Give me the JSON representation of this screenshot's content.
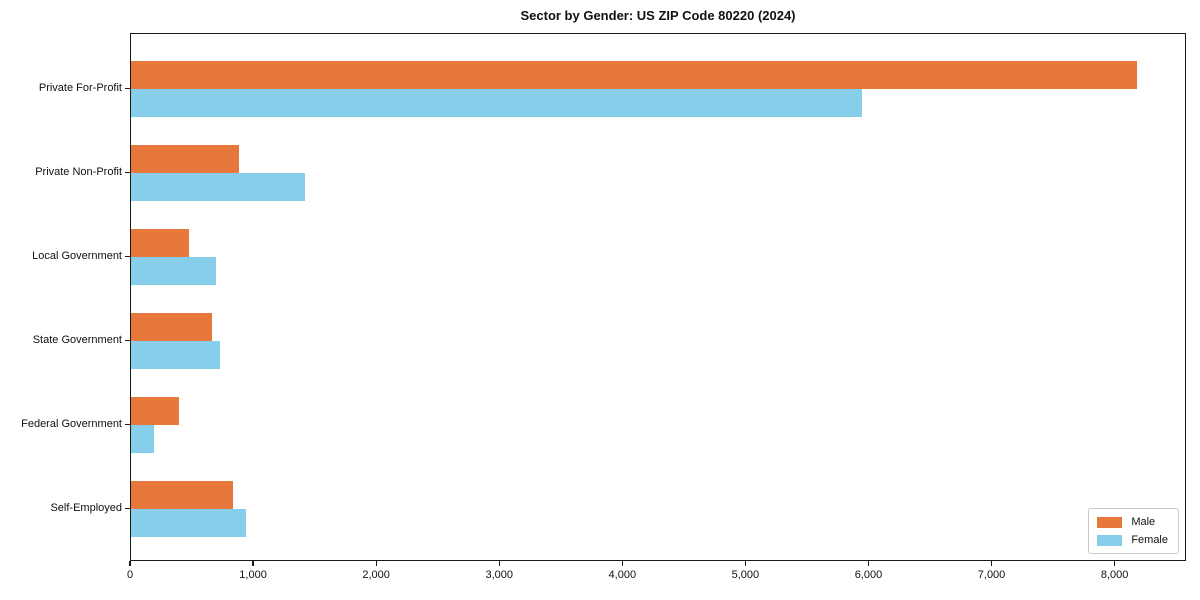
{
  "chart_data": {
    "type": "bar",
    "orientation": "horizontal",
    "title": "Sector by Gender: US ZIP Code 80220 (2024)",
    "categories": [
      "Private For-Profit",
      "Private Non-Profit",
      "Local Government",
      "State Government",
      "Federal Government",
      "Self-Employed"
    ],
    "series": [
      {
        "name": "Male",
        "color": "#e8773c",
        "values": [
          8170,
          880,
          470,
          660,
          390,
          830
        ]
      },
      {
        "name": "Female",
        "color": "#87ceeb",
        "values": [
          5940,
          1410,
          690,
          720,
          190,
          930
        ]
      }
    ],
    "xlabel": "",
    "ylabel": "",
    "xlim": [
      0,
      8580
    ],
    "x_ticks": [
      0,
      1000,
      2000,
      3000,
      4000,
      5000,
      6000,
      7000,
      8000
    ],
    "x_tick_labels": [
      "0",
      "1,000",
      "2,000",
      "3,000",
      "4,000",
      "5,000",
      "6,000",
      "7,000",
      "8,000"
    ],
    "grid": false,
    "legend_position": "lower right"
  }
}
